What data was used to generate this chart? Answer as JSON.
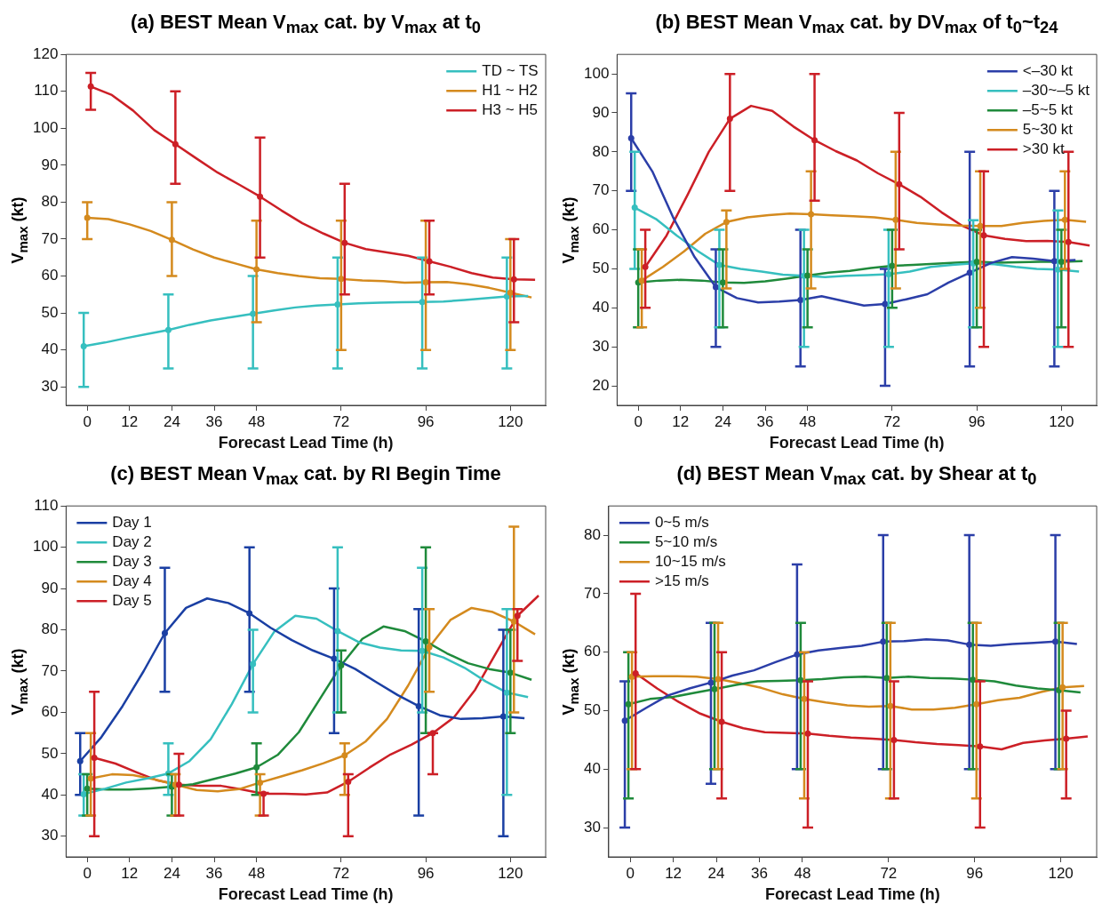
{
  "chart_data": [
    {
      "type": "line",
      "title": "(a) BEST Mean V$_{max}$ cat. by V$_{max}$ at t$_{0}$",
      "xlabel": "Forecast Lead Time (h)",
      "ylabel": "V$_{max}$ (kt)",
      "xlim": [
        -6,
        130
      ],
      "xticks": [
        0,
        12,
        24,
        36,
        48,
        72,
        96,
        120
      ],
      "ylim": [
        25,
        120
      ],
      "yticks": [
        30,
        40,
        50,
        60,
        70,
        80,
        90,
        100,
        110,
        120
      ],
      "legend": "top right",
      "series": [
        {
          "name": "TD ~ TS",
          "color": "#36bfbf",
          "x": [
            -1,
            5,
            11,
            17,
            23,
            29,
            35,
            41,
            47,
            53,
            59,
            65,
            71,
            77,
            83,
            89,
            95,
            101,
            107,
            113,
            119,
            125
          ],
          "values": [
            41,
            42,
            43.2,
            44.3,
            45.4,
            46.8,
            48,
            48.9,
            49.8,
            50.7,
            51.5,
            52,
            52.3,
            52.6,
            52.8,
            52.9,
            53,
            53.1,
            53.5,
            54,
            54.5,
            54.6
          ],
          "errors": [
            [
              30,
              50
            ],
            null,
            null,
            null,
            [
              35,
              55
            ],
            null,
            null,
            null,
            [
              35,
              60
            ],
            null,
            null,
            null,
            [
              35,
              65
            ],
            null,
            null,
            null,
            [
              35,
              65
            ],
            null,
            null,
            null,
            [
              35,
              65
            ],
            null
          ]
        },
        {
          "name": "H1 ~ H2",
          "color": "#d48a1e",
          "x": [
            0,
            6,
            12,
            18,
            24,
            30,
            36,
            42,
            48,
            54,
            60,
            66,
            72,
            78,
            84,
            90,
            96,
            102,
            108,
            114,
            120,
            126
          ],
          "values": [
            75.8,
            75.4,
            74,
            72.2,
            69.8,
            67.2,
            65,
            63.4,
            61.8,
            60.8,
            60,
            59.4,
            59.2,
            58.8,
            58.6,
            58.2,
            58.3,
            58.4,
            57.8,
            56.8,
            55.5,
            54.2
          ],
          "errors": [
            [
              70,
              80
            ],
            null,
            null,
            null,
            [
              60,
              80
            ],
            null,
            null,
            null,
            [
              47.5,
              75
            ],
            null,
            null,
            null,
            [
              40,
              75
            ],
            null,
            null,
            null,
            [
              40,
              75
            ],
            null,
            null,
            null,
            [
              40,
              70
            ],
            null
          ]
        },
        {
          "name": "H3 ~ H5",
          "color": "#cc1f26",
          "x": [
            1,
            7,
            13,
            19,
            25,
            31,
            37,
            43,
            49,
            55,
            61,
            67,
            73,
            79,
            85,
            91,
            97,
            103,
            109,
            115,
            121,
            127
          ],
          "values": [
            111.3,
            109,
            104.8,
            99.5,
            95.7,
            91.8,
            88,
            84.8,
            81.5,
            77.8,
            74.3,
            71.5,
            69,
            67.3,
            66.4,
            65.5,
            64,
            62.5,
            60.8,
            59.6,
            59.1,
            59
          ],
          "errors": [
            [
              105,
              115
            ],
            null,
            null,
            null,
            [
              85,
              110
            ],
            null,
            null,
            null,
            [
              65,
              97.5
            ],
            null,
            null,
            null,
            [
              55,
              85
            ],
            null,
            null,
            null,
            [
              55,
              75
            ],
            null,
            null,
            null,
            [
              47.5,
              70
            ],
            null
          ]
        }
      ]
    },
    {
      "type": "line",
      "title": "(b) BEST Mean V$_{max}$ cat. by DV$_{max}$ of t$_{0}$~t$_{24}$",
      "xlabel": "Forecast Lead Time (h)",
      "ylabel": "V$_{max}$ (kt)",
      "xlim": [
        -6,
        130
      ],
      "xticks": [
        0,
        12,
        24,
        36,
        48,
        72,
        96,
        120
      ],
      "ylim": [
        15,
        105
      ],
      "yticks": [
        20,
        30,
        40,
        50,
        60,
        70,
        80,
        90,
        100
      ],
      "legend": "top right",
      "series": [
        {
          "name": "<–30 kt",
          "color": "#2b3ea8",
          "x": [
            -2,
            4,
            10,
            16,
            22,
            28,
            34,
            40,
            46,
            52,
            58,
            64,
            70,
            76,
            82,
            88,
            94,
            100,
            106,
            112,
            118,
            124
          ],
          "values": [
            83.5,
            75,
            63,
            53,
            45.3,
            42.5,
            41.4,
            41.6,
            42,
            43,
            41.8,
            40.6,
            41,
            42.2,
            43.5,
            46.5,
            49,
            51.5,
            53,
            52.6,
            52,
            52.3
          ],
          "errors": [
            [
              70,
              95
            ],
            null,
            null,
            null,
            [
              30,
              55
            ],
            null,
            null,
            null,
            [
              25,
              60
            ],
            null,
            null,
            null,
            [
              20,
              50
            ],
            null,
            null,
            null,
            [
              25,
              80
            ],
            null,
            null,
            null,
            [
              25,
              70
            ],
            null
          ]
        },
        {
          "name": "–30~–5 kt",
          "color": "#36bfbf",
          "x": [
            -1,
            5,
            11,
            17,
            23,
            29,
            35,
            41,
            47,
            53,
            59,
            65,
            71,
            77,
            83,
            89,
            95,
            101,
            107,
            113,
            119,
            125
          ],
          "values": [
            65.7,
            62.8,
            58.5,
            54.5,
            51,
            50,
            49.3,
            48.5,
            48.2,
            47.9,
            48.2,
            48.4,
            48.6,
            49.3,
            50.5,
            51,
            51.4,
            51.2,
            50.5,
            50,
            49.8,
            49.3
          ],
          "errors": [
            [
              50,
              80
            ],
            null,
            null,
            null,
            [
              35,
              60
            ],
            null,
            null,
            null,
            [
              30,
              60
            ],
            null,
            null,
            null,
            [
              30,
              60
            ],
            null,
            null,
            null,
            [
              35,
              62.5
            ],
            null,
            null,
            null,
            [
              30,
              65
            ],
            null
          ]
        },
        {
          "name": "–5~5 kt",
          "color": "#1f8a3b",
          "x": [
            0,
            6,
            12,
            18,
            24,
            30,
            36,
            42,
            48,
            54,
            60,
            66,
            72,
            78,
            84,
            90,
            96,
            102,
            108,
            114,
            120,
            126
          ],
          "values": [
            46.5,
            47,
            47.2,
            47,
            46.5,
            46.4,
            46.8,
            47.5,
            48.3,
            49,
            49.5,
            50.2,
            50.8,
            51,
            51.3,
            51.6,
            51.8,
            51.6,
            51.7,
            51.8,
            51.8,
            52
          ],
          "errors": [
            [
              35,
              55
            ],
            null,
            null,
            null,
            [
              35,
              55
            ],
            null,
            null,
            null,
            [
              35,
              55
            ],
            null,
            null,
            null,
            [
              40,
              60
            ],
            null,
            null,
            null,
            [
              35,
              60
            ],
            null,
            null,
            null,
            [
              35,
              60
            ],
            null
          ]
        },
        {
          "name": "5~30 kt",
          "color": "#d48a1e",
          "x": [
            1,
            7,
            13,
            19,
            25,
            31,
            37,
            43,
            49,
            55,
            61,
            67,
            73,
            79,
            85,
            91,
            97,
            103,
            109,
            115,
            121,
            127
          ],
          "values": [
            47,
            50.5,
            54.5,
            59,
            62,
            63.2,
            63.8,
            64.2,
            64,
            63.7,
            63.5,
            63.2,
            62.6,
            61.8,
            61.4,
            61.1,
            61,
            61,
            61.8,
            62.3,
            62.6,
            62.1
          ],
          "errors": [
            [
              35,
              55
            ],
            null,
            null,
            null,
            [
              45,
              65
            ],
            null,
            null,
            null,
            [
              45,
              75
            ],
            null,
            null,
            null,
            [
              45,
              80
            ],
            null,
            null,
            null,
            [
              40,
              75
            ],
            null,
            null,
            null,
            [
              50,
              75
            ],
            null
          ]
        },
        {
          "name": ">30 kt",
          "color": "#cc1f26",
          "x": [
            2,
            8,
            14,
            20,
            26,
            32,
            38,
            44,
            50,
            56,
            62,
            68,
            74,
            80,
            86,
            92,
            98,
            104,
            110,
            116,
            122,
            128
          ],
          "values": [
            50.5,
            58.5,
            69,
            80,
            88.5,
            91.8,
            90.5,
            86.5,
            83,
            80.2,
            77.8,
            74.5,
            71.7,
            68.5,
            64.5,
            61,
            58.6,
            57.7,
            57.1,
            57.2,
            56.9,
            56
          ],
          "errors": [
            [
              40,
              60
            ],
            null,
            null,
            null,
            [
              70,
              100
            ],
            null,
            null,
            null,
            [
              67.5,
              100
            ],
            null,
            null,
            null,
            [
              55,
              90
            ],
            null,
            null,
            null,
            [
              30,
              75
            ],
            null,
            null,
            null,
            [
              30,
              80
            ],
            null
          ]
        }
      ]
    },
    {
      "type": "line",
      "title": "(c) BEST Mean V$_{max}$ cat. by RI Begin Time",
      "xlabel": "Forecast Lead Time (h)",
      "ylabel": "V$_{max}$ (kt)",
      "xlim": [
        -6,
        130
      ],
      "xticks": [
        0,
        12,
        24,
        36,
        48,
        72,
        96,
        120
      ],
      "ylim": [
        25,
        110
      ],
      "yticks": [
        30,
        40,
        50,
        60,
        70,
        80,
        90,
        100,
        110
      ],
      "legend": "top left",
      "series": [
        {
          "name": "Day 1",
          "color": "#1a3fa3",
          "x": [
            -2,
            4,
            10,
            16,
            22,
            28,
            34,
            40,
            46,
            52,
            58,
            64,
            70,
            76,
            82,
            88,
            94,
            100,
            106,
            112,
            118,
            124
          ],
          "values": [
            48.2,
            54,
            61.5,
            70,
            79.2,
            85.3,
            87.6,
            86.5,
            84,
            80.5,
            77.5,
            75,
            73,
            70.5,
            67.3,
            64.2,
            61.5,
            59.3,
            58.4,
            58.6,
            59,
            58.6
          ],
          "errors": [
            [
              40,
              55
            ],
            null,
            null,
            null,
            [
              65,
              95
            ],
            null,
            null,
            null,
            [
              65,
              100
            ],
            null,
            null,
            null,
            [
              55,
              90
            ],
            null,
            null,
            null,
            [
              35,
              85
            ],
            null,
            null,
            null,
            [
              30,
              80
            ],
            null
          ]
        },
        {
          "name": "Day 2",
          "color": "#36bfbf",
          "x": [
            -1,
            5,
            11,
            17,
            23,
            29,
            35,
            41,
            47,
            53,
            59,
            65,
            71,
            77,
            83,
            89,
            95,
            101,
            107,
            113,
            119,
            125
          ],
          "values": [
            40.2,
            41.5,
            43,
            44,
            45.2,
            48.2,
            53.5,
            62,
            71.7,
            79.5,
            83.4,
            82.7,
            79.7,
            77,
            75.7,
            75,
            74.9,
            73.3,
            70.8,
            67.5,
            64.8,
            63.7
          ],
          "errors": [
            [
              35,
              45
            ],
            null,
            null,
            null,
            [
              40,
              52.5
            ],
            null,
            null,
            null,
            [
              60,
              80
            ],
            null,
            null,
            null,
            [
              60,
              100
            ],
            null,
            null,
            null,
            [
              60,
              95
            ],
            null,
            null,
            null,
            [
              40,
              85
            ],
            null
          ]
        },
        {
          "name": "Day 3",
          "color": "#1f8a3b",
          "x": [
            0,
            6,
            12,
            18,
            24,
            30,
            36,
            42,
            48,
            54,
            60,
            66,
            72,
            78,
            84,
            90,
            96,
            102,
            108,
            114,
            120,
            126
          ],
          "values": [
            41.5,
            41.3,
            41.3,
            41.6,
            42,
            42.6,
            43.9,
            45.2,
            46.7,
            49.7,
            55.2,
            63.3,
            71.4,
            77.8,
            80.8,
            79.7,
            77.2,
            74.3,
            71.9,
            70.5,
            69.6,
            67.9
          ],
          "errors": [
            [
              35,
              45
            ],
            null,
            null,
            null,
            [
              35,
              45
            ],
            null,
            null,
            null,
            [
              40,
              52.5
            ],
            null,
            null,
            null,
            [
              60,
              75
            ],
            null,
            null,
            null,
            [
              55,
              100
            ],
            null,
            null,
            null,
            [
              55,
              80
            ],
            null
          ]
        },
        {
          "name": "Day 4",
          "color": "#d48a1e",
          "x": [
            1,
            7,
            13,
            19,
            25,
            31,
            37,
            43,
            49,
            55,
            61,
            67,
            73,
            79,
            85,
            91,
            97,
            103,
            109,
            115,
            121,
            127
          ],
          "values": [
            44,
            45,
            44.8,
            43.8,
            42.5,
            41.2,
            40.9,
            41.4,
            43,
            44.5,
            46,
            47.7,
            49.6,
            53,
            58.4,
            66.5,
            75.8,
            82.4,
            85.3,
            84.3,
            82,
            78.9
          ],
          "errors": [
            [
              35,
              55
            ],
            null,
            null,
            null,
            [
              35,
              45
            ],
            null,
            null,
            null,
            [
              35,
              45
            ],
            null,
            null,
            null,
            [
              40,
              52.5
            ],
            null,
            null,
            null,
            [
              65,
              85
            ],
            null,
            null,
            null,
            [
              60,
              105
            ],
            null
          ]
        },
        {
          "name": "Day 5",
          "color": "#cc1f26",
          "x": [
            2,
            8,
            14,
            20,
            26,
            32,
            38,
            44,
            50,
            56,
            62,
            68,
            74,
            80,
            86,
            92,
            98,
            104,
            110,
            116,
            122,
            128
          ],
          "values": [
            49,
            47.6,
            45.5,
            43.5,
            42.5,
            42.2,
            42.2,
            41.3,
            40.3,
            40.3,
            40.1,
            40.6,
            43.2,
            46.6,
            49.8,
            52.2,
            55,
            58.8,
            65.5,
            74.5,
            83.4,
            88.3
          ],
          "errors": [
            [
              30,
              65
            ],
            null,
            null,
            null,
            [
              35,
              50
            ],
            null,
            null,
            null,
            [
              35,
              40.5
            ],
            null,
            null,
            null,
            [
              30,
              45
            ],
            null,
            null,
            null,
            [
              45,
              55
            ],
            null,
            null,
            null,
            [
              72.5,
              85
            ],
            null
          ]
        }
      ]
    },
    {
      "type": "line",
      "title": "(d) BEST Mean V$_{max}$ cat. by Shear at t$_{0}$",
      "xlabel": "Forecast Lead Time (h)",
      "ylabel": "V$_{max}$ (kt)",
      "xlim": [
        -6,
        130
      ],
      "xticks": [
        0,
        12,
        24,
        36,
        48,
        72,
        96,
        120
      ],
      "ylim": [
        25,
        85
      ],
      "yticks": [
        30,
        40,
        50,
        60,
        70,
        80
      ],
      "legend": "top left",
      "series": [
        {
          "name": "0~5 m/s",
          "color": "#2b3ea8",
          "x": [
            -1.5,
            4.5,
            10.5,
            16.5,
            22.5,
            28.5,
            34.5,
            40.5,
            46.5,
            52.5,
            58.5,
            64.5,
            70.5,
            76.5,
            82.5,
            88.5,
            94.5,
            100.5,
            106.5,
            112.5,
            118.5,
            124.5
          ],
          "values": [
            48.3,
            50.5,
            52.6,
            53.8,
            54.8,
            56,
            56.9,
            58.3,
            59.6,
            60.3,
            60.7,
            61.1,
            61.8,
            61.9,
            62.2,
            62,
            61.3,
            61.1,
            61.4,
            61.6,
            61.8,
            61.4
          ],
          "errors": [
            [
              30,
              55
            ],
            null,
            null,
            null,
            [
              37.5,
              65
            ],
            null,
            null,
            null,
            [
              40,
              75
            ],
            null,
            null,
            null,
            [
              40,
              80
            ],
            null,
            null,
            null,
            [
              40,
              80
            ],
            null,
            null,
            null,
            [
              40,
              80
            ],
            null
          ]
        },
        {
          "name": "5~10 m/s",
          "color": "#1f8a3b",
          "x": [
            -0.5,
            5.5,
            11.5,
            17.5,
            23.5,
            29.5,
            35.5,
            41.5,
            47.5,
            53.5,
            59.5,
            65.5,
            71.5,
            77.5,
            83.5,
            89.5,
            95.5,
            101.5,
            107.5,
            113.5,
            119.5,
            125.5
          ],
          "values": [
            51.1,
            52,
            52.3,
            53,
            53.7,
            54.4,
            55,
            55.1,
            55.2,
            55.4,
            55.7,
            55.8,
            55.6,
            55.8,
            55.6,
            55.5,
            55.3,
            55,
            54.3,
            53.8,
            53.5,
            53.1
          ],
          "errors": [
            [
              35,
              60
            ],
            null,
            null,
            null,
            [
              40,
              65
            ],
            null,
            null,
            null,
            [
              40,
              65
            ],
            null,
            null,
            null,
            [
              40,
              65
            ],
            null,
            null,
            null,
            [
              40,
              65
            ],
            null,
            null,
            null,
            [
              40,
              65
            ],
            null
          ]
        },
        {
          "name": "10~15 m/s",
          "color": "#d48a1e",
          "x": [
            0.5,
            6.5,
            12.5,
            18.5,
            24.5,
            30.5,
            36.5,
            42.5,
            48.5,
            54.5,
            60.5,
            66.5,
            72.5,
            78.5,
            84.5,
            90.5,
            96.5,
            102.5,
            108.5,
            114.5,
            120.5,
            126.5
          ],
          "values": [
            55.8,
            55.9,
            55.9,
            55.8,
            55.4,
            54.7,
            53.9,
            52.8,
            52,
            51.4,
            50.9,
            50.7,
            50.8,
            50.2,
            50.2,
            50.5,
            51.1,
            51.8,
            52.2,
            53.2,
            54,
            54.2
          ],
          "errors": [
            [
              40,
              60
            ],
            null,
            null,
            null,
            [
              40,
              65
            ],
            null,
            null,
            null,
            [
              35,
              60
            ],
            null,
            null,
            null,
            [
              35,
              65
            ],
            null,
            null,
            null,
            [
              35,
              65
            ],
            null,
            null,
            null,
            [
              40,
              65
            ],
            null
          ]
        },
        {
          "name": ">15 m/s",
          "color": "#cc1f26",
          "x": [
            1.5,
            7.5,
            13.5,
            19.5,
            25.5,
            31.5,
            37.5,
            43.5,
            49.5,
            55.5,
            61.5,
            67.5,
            73.5,
            79.5,
            85.5,
            91.5,
            97.5,
            103.5,
            109.5,
            115.5,
            121.5,
            127.5
          ],
          "values": [
            56.4,
            53.8,
            51.5,
            49.5,
            48.1,
            47,
            46.3,
            46.2,
            46.1,
            45.7,
            45.4,
            45.2,
            45,
            44.6,
            44.3,
            44.1,
            43.9,
            43.4,
            44.5,
            44.9,
            45.2,
            45.6
          ],
          "errors": [
            [
              40,
              70
            ],
            null,
            null,
            null,
            [
              35,
              60
            ],
            null,
            null,
            null,
            [
              30,
              55
            ],
            null,
            null,
            null,
            [
              35,
              55
            ],
            null,
            null,
            null,
            [
              30,
              55
            ],
            null,
            null,
            null,
            [
              35,
              50
            ],
            null
          ]
        }
      ]
    }
  ]
}
